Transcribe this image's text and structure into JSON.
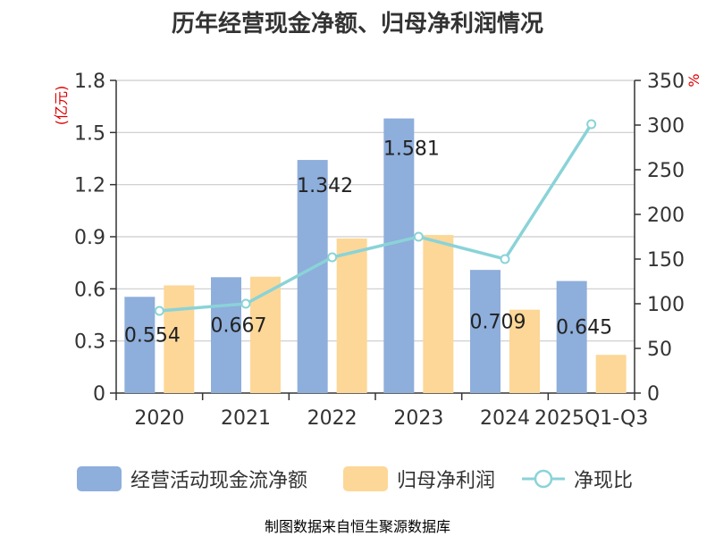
{
  "chart_data": {
    "type": "bar",
    "title": "历年经营现金净额、归母净利润情况",
    "categories": [
      "2020",
      "2021",
      "2022",
      "2023",
      "2024",
      "2025Q1-Q3"
    ],
    "series": [
      {
        "name": "经营活动现金流净额",
        "type": "bar",
        "axis": "left",
        "values": [
          0.554,
          0.667,
          1.342,
          1.581,
          0.709,
          0.645
        ],
        "color": "#8EAEDB"
      },
      {
        "name": "归母净利润",
        "type": "bar",
        "axis": "left",
        "values": [
          0.62,
          0.67,
          0.89,
          0.91,
          0.48,
          0.22
        ],
        "color": "#FDD797"
      },
      {
        "name": "净现比",
        "type": "line",
        "axis": "right",
        "values": [
          92,
          100,
          152,
          175,
          150,
          301
        ],
        "color": "#8AD3D8"
      }
    ],
    "data_labels": [
      "0.554",
      "0.667",
      "1.342",
      "1.581",
      "0.709",
      "0.645"
    ],
    "y_left": {
      "label": "(亿元)",
      "min": 0,
      "max": 1.8,
      "ticks": [
        "0",
        "0.3",
        "0.6",
        "0.9",
        "1.2",
        "1.5",
        "1.8"
      ]
    },
    "y_right": {
      "label": "%",
      "min": 0,
      "max": 350,
      "ticks": [
        "0",
        "50",
        "100",
        "150",
        "200",
        "250",
        "300",
        "350"
      ]
    },
    "grid": true,
    "legend_position": "bottom"
  },
  "footer": {
    "text": "制图数据来自恒生聚源数据库",
    "color": "#C99A2E"
  },
  "colors": {
    "axis_label_red": "#DD0000",
    "grid": "#CCCCCC",
    "axis": "#333333"
  }
}
